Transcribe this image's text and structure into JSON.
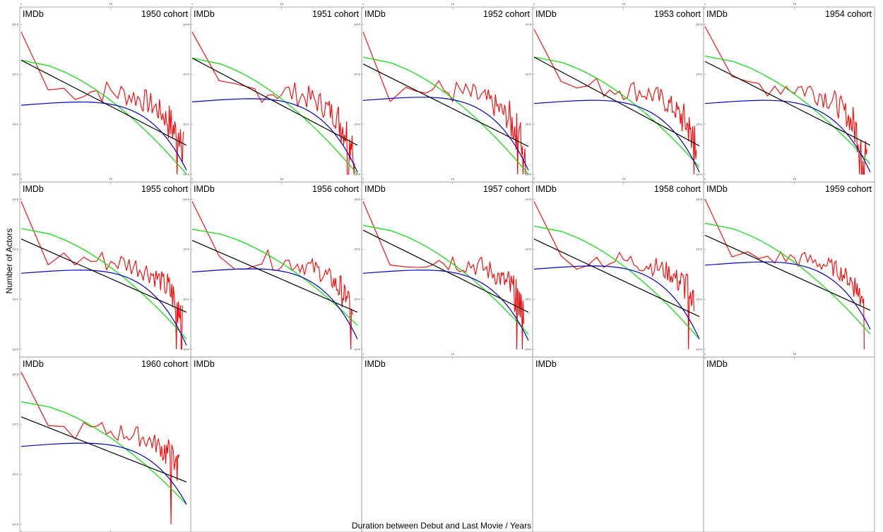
{
  "figure": {
    "xlabel": "Duration between Debut and Last Movie / Years",
    "ylabel": "Number of Actors",
    "brand": "IMDb",
    "colors": {
      "data": "#ff0000",
      "power_law": "#000000",
      "fit_green": "#00e000",
      "fit_blue": "#0000cc"
    }
  },
  "chart_data": [
    {
      "type": "line",
      "title": "1950 cohort",
      "xscale": "log",
      "yscale": "log",
      "xlim": [
        1,
        70
      ],
      "ylim": [
        0.7,
        2200
      ],
      "x_tick_labels": [
        "1",
        "10"
      ],
      "y_tick_labels": [
        "10^0",
        "10^1",
        "10^2",
        "10^3"
      ],
      "series": [
        {
          "key": "data",
          "n_points": 65,
          "y_start": 700,
          "y_mid": 35,
          "y_end": 3,
          "noise": 0.5
        },
        {
          "key": "power",
          "y1": 190,
          "y_end": 3.8
        },
        {
          "key": "green",
          "y1": 190,
          "y_end": 1
        },
        {
          "key": "blue",
          "y1": 24,
          "y_end": 1.2
        }
      ]
    },
    {
      "type": "line",
      "title": "1951 cohort",
      "xscale": "log",
      "yscale": "log",
      "xlim": [
        1,
        70
      ],
      "ylim": [
        0.7,
        2200
      ],
      "x_tick_labels": [
        "1",
        "10"
      ],
      "y_tick_labels": [
        "10^0",
        "10^1",
        "10^2",
        "10^3"
      ],
      "series": [
        {
          "key": "data",
          "n_points": 65,
          "y_start": 700,
          "y_mid": 36,
          "y_end": 3,
          "noise": 0.5
        },
        {
          "key": "power",
          "y1": 210,
          "y_end": 3.8
        },
        {
          "key": "green",
          "y1": 210,
          "y_end": 1
        },
        {
          "key": "blue",
          "y1": 28,
          "y_end": 1.1
        }
      ]
    },
    {
      "type": "line",
      "title": "1952 cohort",
      "xscale": "log",
      "yscale": "log",
      "xlim": [
        1,
        70
      ],
      "ylim": [
        0.7,
        2200
      ],
      "x_tick_labels": [
        "1",
        "10"
      ],
      "y_tick_labels": [
        "10^0",
        "10^1",
        "10^2",
        "10^3"
      ],
      "series": [
        {
          "key": "data",
          "n_points": 65,
          "y_start": 700,
          "y_mid": 36,
          "y_end": 3,
          "noise": 0.5
        },
        {
          "key": "power",
          "y1": 160,
          "y_end": 3.6
        },
        {
          "key": "green",
          "y1": 220,
          "y_end": 1
        },
        {
          "key": "blue",
          "y1": 30,
          "y_end": 1.2
        }
      ]
    },
    {
      "type": "line",
      "title": "1953 cohort",
      "xscale": "log",
      "yscale": "log",
      "xlim": [
        1,
        70
      ],
      "ylim": [
        0.7,
        2200
      ],
      "x_tick_labels": [
        "1",
        "10"
      ],
      "y_tick_labels": [
        "10^0",
        "10^1",
        "10^2",
        "10^3"
      ],
      "series": [
        {
          "key": "data",
          "n_points": 65,
          "y_start": 800,
          "y_mid": 38,
          "y_end": 4,
          "noise": 0.45
        },
        {
          "key": "power",
          "y1": 220,
          "y_end": 3.7
        },
        {
          "key": "green",
          "y1": 220,
          "y_end": 1.4
        },
        {
          "key": "blue",
          "y1": 26,
          "y_end": 1.1
        }
      ]
    },
    {
      "type": "line",
      "title": "1954 cohort",
      "xscale": "log",
      "yscale": "log",
      "xlim": [
        1,
        70
      ],
      "ylim": [
        0.7,
        2200
      ],
      "x_tick_labels": [
        "1",
        "10"
      ],
      "y_tick_labels": [
        "10^0",
        "10^1",
        "10^2",
        "10^3"
      ],
      "series": [
        {
          "key": "data",
          "n_points": 65,
          "y_start": 900,
          "y_mid": 35,
          "y_end": 2,
          "noise": 0.5
        },
        {
          "key": "power",
          "y1": 180,
          "y_end": 3.8
        },
        {
          "key": "green",
          "y1": 230,
          "y_end": 1.6
        },
        {
          "key": "blue",
          "y1": 26,
          "y_end": 1.1
        }
      ]
    },
    {
      "type": "line",
      "title": "1955 cohort",
      "xscale": "log",
      "yscale": "log",
      "xlim": [
        1,
        70
      ],
      "ylim": [
        0.7,
        2200
      ],
      "x_tick_labels": [
        "1",
        "10"
      ],
      "y_tick_labels": [
        "10^0",
        "10^1",
        "10^2",
        "10^3"
      ],
      "series": [
        {
          "key": "data",
          "n_points": 63,
          "y_start": 900,
          "y_mid": 30,
          "y_end": 5,
          "noise": 0.45
        },
        {
          "key": "power",
          "y1": 160,
          "y_end": 5.5
        },
        {
          "key": "green",
          "y1": 260,
          "y_end": 1.6
        },
        {
          "key": "blue",
          "y1": 33,
          "y_end": 1.2
        }
      ]
    },
    {
      "type": "line",
      "title": "1956 cohort",
      "xscale": "log",
      "yscale": "log",
      "xlim": [
        1,
        70
      ],
      "ylim": [
        0.7,
        2200
      ],
      "x_tick_labels": [
        "1",
        "10"
      ],
      "y_tick_labels": [
        "10^0",
        "10^1",
        "10^2",
        "10^3"
      ],
      "series": [
        {
          "key": "data",
          "n_points": 62,
          "y_start": 900,
          "y_mid": 33,
          "y_end": 6,
          "noise": 0.4
        },
        {
          "key": "power",
          "y1": 150,
          "y_end": 5.5
        },
        {
          "key": "green",
          "y1": 250,
          "y_end": 3
        },
        {
          "key": "blue",
          "y1": 35,
          "y_end": 1.6
        }
      ]
    },
    {
      "type": "line",
      "title": "1957 cohort",
      "xscale": "log",
      "yscale": "log",
      "xlim": [
        1,
        70
      ],
      "ylim": [
        0.7,
        2200
      ],
      "x_tick_labels": [
        "1",
        "10"
      ],
      "y_tick_labels": [
        "10^0",
        "10^1",
        "10^2",
        "10^3"
      ],
      "series": [
        {
          "key": "data",
          "n_points": 62,
          "y_start": 900,
          "y_mid": 33,
          "y_end": 6,
          "noise": 0.45
        },
        {
          "key": "power",
          "y1": 240,
          "y_end": 5.5
        },
        {
          "key": "green",
          "y1": 300,
          "y_end": 2
        },
        {
          "key": "blue",
          "y1": 33,
          "y_end": 1.5
        }
      ]
    },
    {
      "type": "line",
      "title": "1958 cohort",
      "xscale": "log",
      "yscale": "log",
      "xlim": [
        1,
        70
      ],
      "ylim": [
        0.7,
        2200
      ],
      "x_tick_labels": [
        "1",
        "10"
      ],
      "y_tick_labels": [
        "10^0",
        "10^1",
        "10^2",
        "10^3"
      ],
      "series": [
        {
          "key": "data",
          "n_points": 61,
          "y_start": 900,
          "y_mid": 34,
          "y_end": 10,
          "noise": 0.4
        },
        {
          "key": "power",
          "y1": 160,
          "y_end": 4.5
        },
        {
          "key": "green",
          "y1": 290,
          "y_end": 1.6
        },
        {
          "key": "blue",
          "y1": 40,
          "y_end": 1.6
        }
      ]
    },
    {
      "type": "line",
      "title": "1959 cohort",
      "xscale": "log",
      "yscale": "log",
      "xlim": [
        1,
        70
      ],
      "ylim": [
        0.7,
        2200
      ],
      "x_tick_labels": [
        "1",
        "10"
      ],
      "y_tick_labels": [
        "10^0",
        "10^1",
        "10^2",
        "10^3"
      ],
      "series": [
        {
          "key": "data",
          "n_points": 60,
          "y_start": 1000,
          "y_mid": 33,
          "y_end": 10,
          "noise": 0.35
        },
        {
          "key": "power",
          "y1": 190,
          "y_end": 6
        },
        {
          "key": "green",
          "y1": 330,
          "y_end": 2
        },
        {
          "key": "blue",
          "y1": 48,
          "y_end": 2.5
        }
      ]
    },
    {
      "type": "line",
      "title": "1960 cohort",
      "xscale": "log",
      "yscale": "log",
      "xlim": [
        1,
        70
      ],
      "ylim": [
        0.7,
        2200
      ],
      "x_tick_labels": [
        "1",
        "10"
      ],
      "y_tick_labels": [
        "10^0",
        "10^1",
        "10^2",
        "10^3"
      ],
      "series": [
        {
          "key": "data",
          "n_points": 58,
          "y_start": 1100,
          "y_mid": 30,
          "y_end": 13,
          "noise": 0.4
        },
        {
          "key": "power",
          "y1": 140,
          "y_end": 7
        },
        {
          "key": "green",
          "y1": 280,
          "y_end": 2.5
        },
        {
          "key": "blue",
          "y1": 36,
          "y_end": 2.5
        }
      ]
    },
    {
      "type": "line",
      "title": "",
      "empty": true,
      "x_tick_labels": [],
      "y_tick_labels": [],
      "series": []
    },
    {
      "type": "line",
      "title": "",
      "empty": true,
      "x_tick_labels": [
        "1",
        "10"
      ],
      "y_tick_labels": [],
      "series": []
    },
    {
      "type": "line",
      "title": "",
      "empty": true,
      "x_tick_labels": [],
      "y_tick_labels": [],
      "series": []
    },
    {
      "type": "line",
      "title": "",
      "empty": true,
      "x_tick_labels": [
        "1",
        "10"
      ],
      "y_tick_labels": [],
      "series": []
    }
  ]
}
